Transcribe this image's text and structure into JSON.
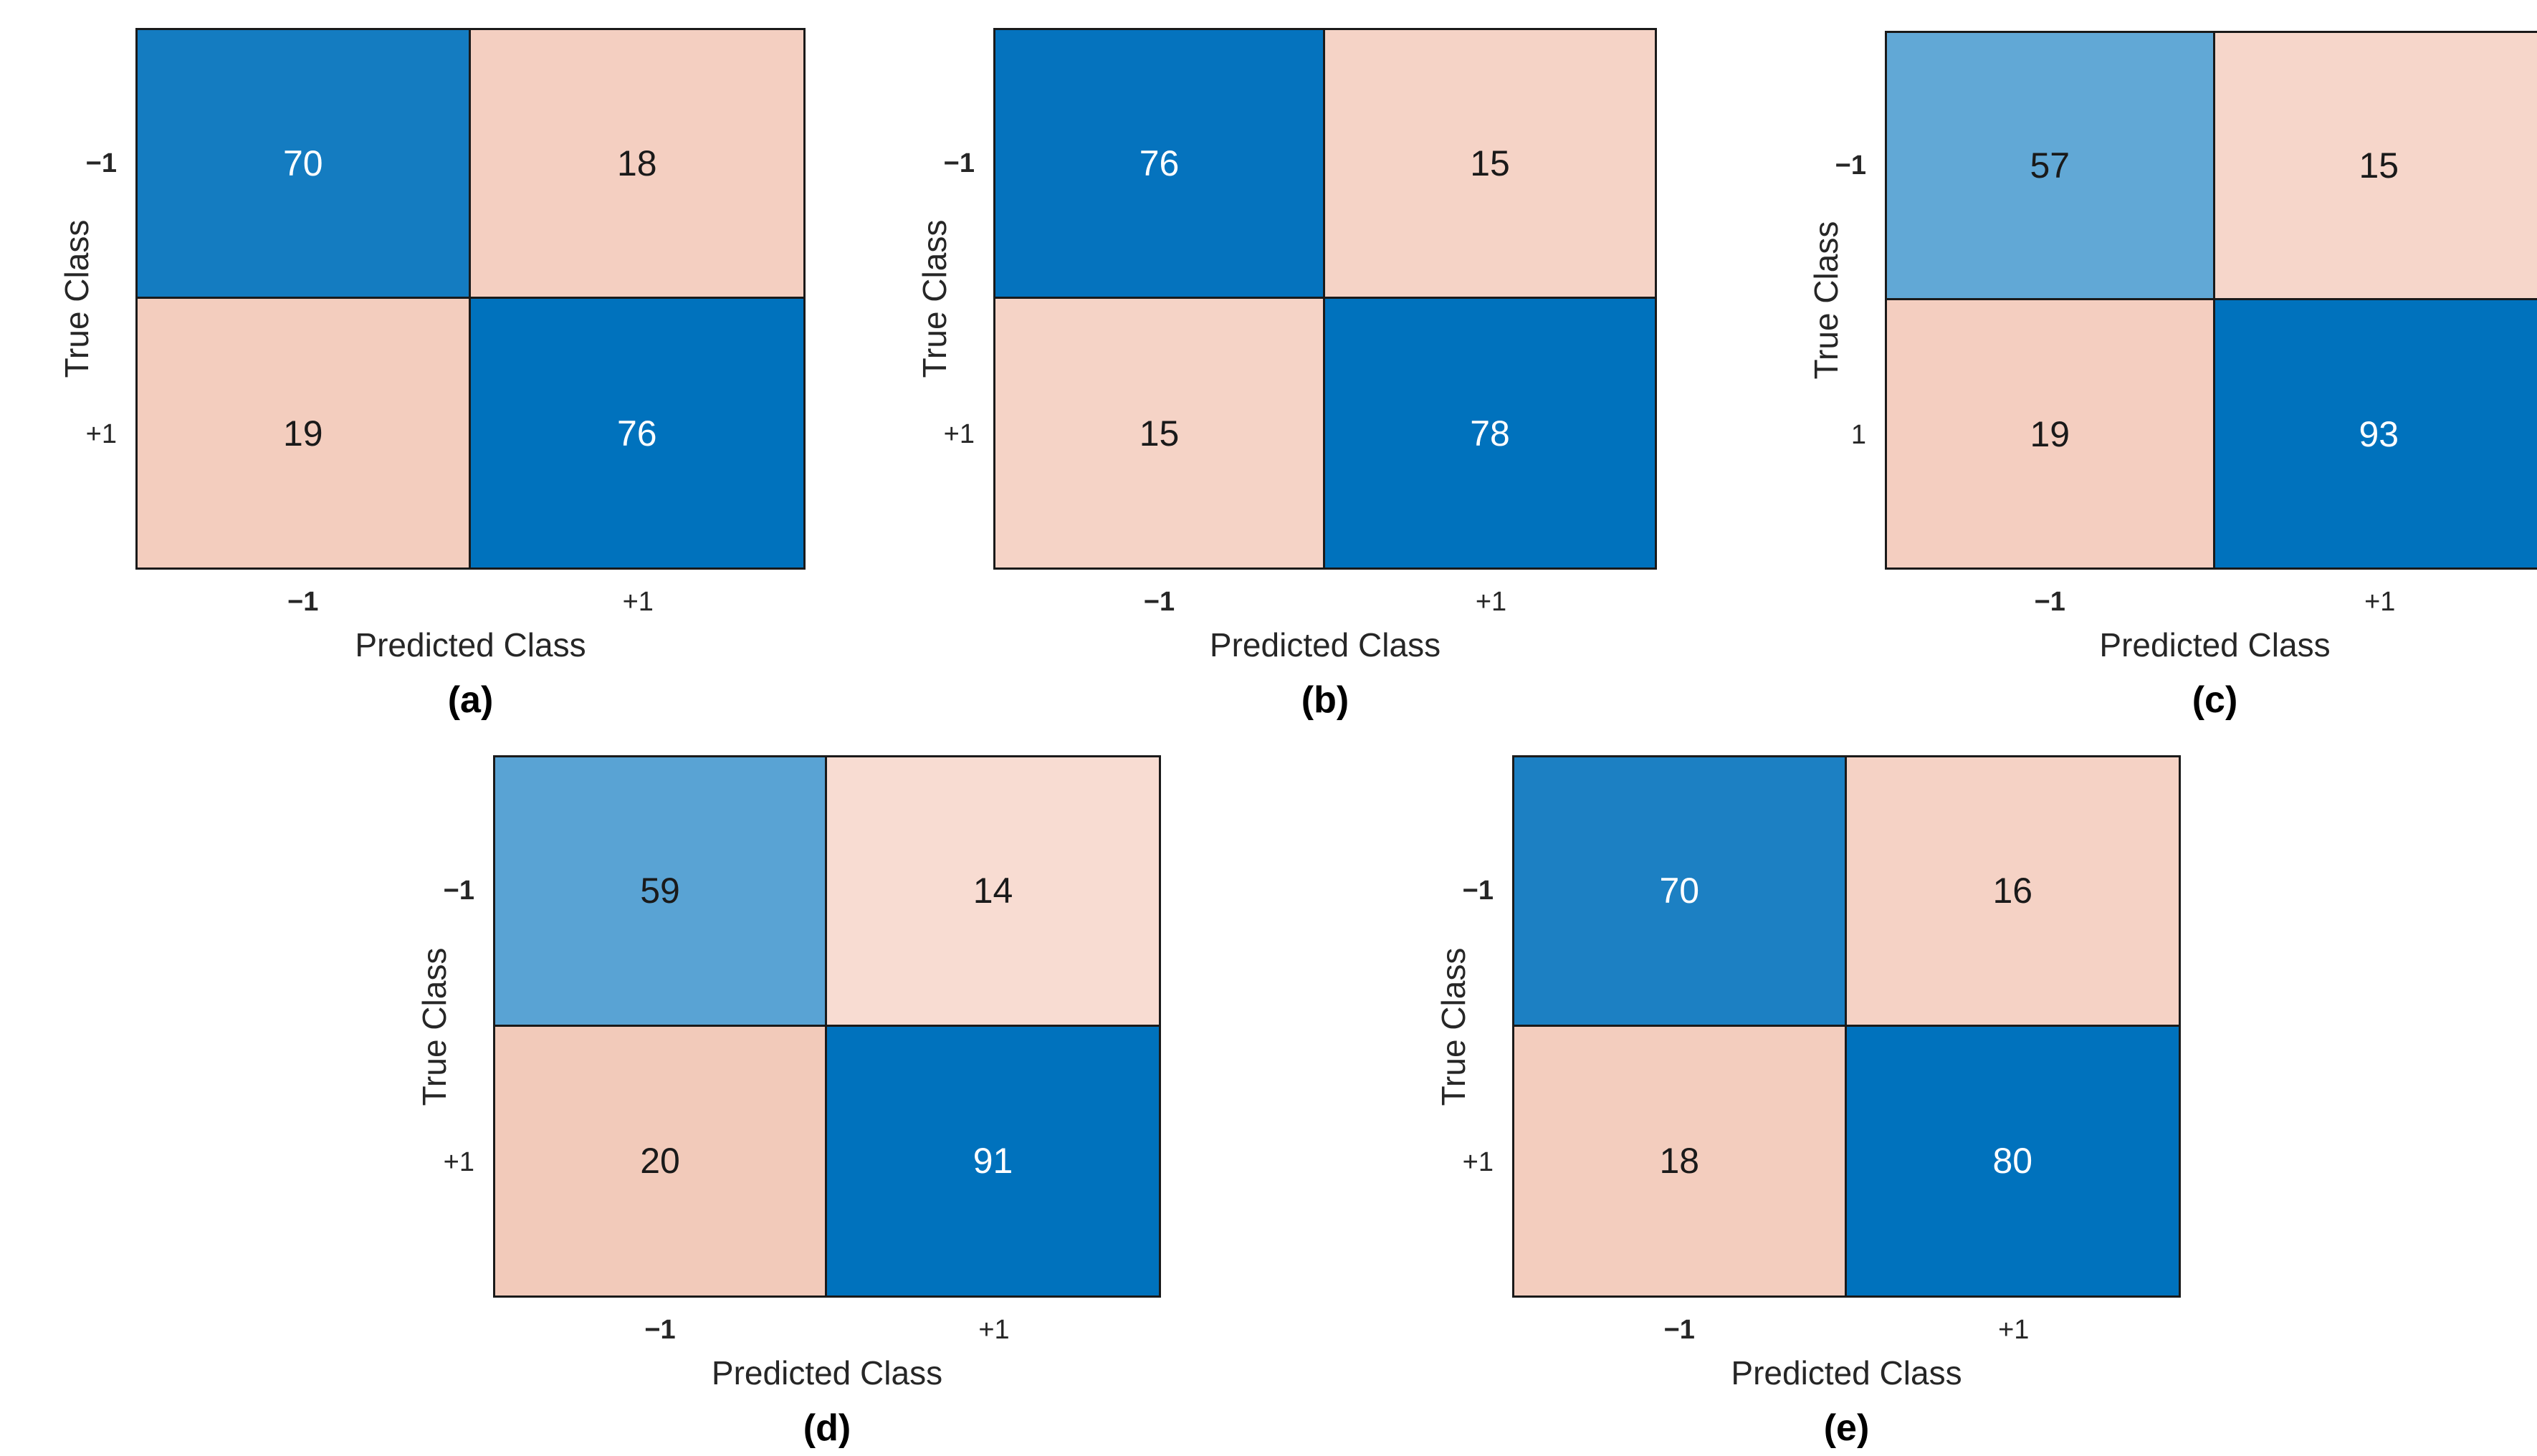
{
  "chart_data": [
    {
      "type": "heatmap",
      "panel_label": "(a)",
      "xlabel": "Predicted Class",
      "ylabel": "True Class",
      "x_categories": [
        "−1",
        "+1"
      ],
      "y_categories": [
        "−1",
        "+1"
      ],
      "matrix": [
        [
          70,
          18
        ],
        [
          19,
          76
        ]
      ],
      "cell_colors": [
        {
          "bg": "#147CC1",
          "fg": "#FFFFFF"
        },
        {
          "bg": "#F4CFC1",
          "fg": "#1A1A1A"
        },
        {
          "bg": "#F3CDBE",
          "fg": "#1A1A1A"
        },
        {
          "bg": "#0072BD",
          "fg": "#FFFFFF"
        }
      ],
      "legend": "off",
      "grid": "off"
    },
    {
      "type": "heatmap",
      "panel_label": "(b)",
      "xlabel": "Predicted Class",
      "ylabel": "True Class",
      "x_categories": [
        "−1",
        "+1"
      ],
      "y_categories": [
        "−1",
        "+1"
      ],
      "matrix": [
        [
          76,
          15
        ],
        [
          15,
          78
        ]
      ],
      "cell_colors": [
        {
          "bg": "#0573BE",
          "fg": "#FFFFFF"
        },
        {
          "bg": "#F5D3C6",
          "fg": "#1A1A1A"
        },
        {
          "bg": "#F5D3C6",
          "fg": "#1A1A1A"
        },
        {
          "bg": "#0072BD",
          "fg": "#FFFFFF"
        }
      ],
      "legend": "off",
      "grid": "off"
    },
    {
      "type": "heatmap",
      "panel_label": "(c)",
      "xlabel": "Predicted Class",
      "ylabel": "True Class",
      "x_categories": [
        "−1",
        "+1"
      ],
      "y_categories": [
        "−1",
        "1"
      ],
      "matrix": [
        [
          57,
          15
        ],
        [
          19,
          93
        ]
      ],
      "cell_colors": [
        {
          "bg": "#61A8D6",
          "fg": "#1A1A1A"
        },
        {
          "bg": "#F6D6CA",
          "fg": "#1A1A1A"
        },
        {
          "bg": "#F4CEC0",
          "fg": "#1A1A1A"
        },
        {
          "bg": "#0072BD",
          "fg": "#FFFFFF"
        }
      ],
      "legend": "off",
      "grid": "off"
    },
    {
      "type": "heatmap",
      "panel_label": "(d)",
      "xlabel": "Predicted Class",
      "ylabel": "True Class",
      "x_categories": [
        "−1",
        "+1"
      ],
      "y_categories": [
        "−1",
        "+1"
      ],
      "matrix": [
        [
          59,
          14
        ],
        [
          20,
          91
        ]
      ],
      "cell_colors": [
        {
          "bg": "#59A3D4",
          "fg": "#1A1A1A"
        },
        {
          "bg": "#F8DCD2",
          "fg": "#1A1A1A"
        },
        {
          "bg": "#F2CABA",
          "fg": "#1A1A1A"
        },
        {
          "bg": "#0072BD",
          "fg": "#FFFFFF"
        }
      ],
      "legend": "off",
      "grid": "off"
    },
    {
      "type": "heatmap",
      "panel_label": "(e)",
      "xlabel": "Predicted Class",
      "ylabel": "True Class",
      "x_categories": [
        "−1",
        "+1"
      ],
      "y_categories": [
        "−1",
        "+1"
      ],
      "matrix": [
        [
          70,
          16
        ],
        [
          18,
          80
        ]
      ],
      "cell_colors": [
        {
          "bg": "#1C80C3",
          "fg": "#FFFFFF"
        },
        {
          "bg": "#F5D2C5",
          "fg": "#1A1A1A"
        },
        {
          "bg": "#F3CDBE",
          "fg": "#1A1A1A"
        },
        {
          "bg": "#0072BD",
          "fg": "#FFFFFF"
        }
      ],
      "legend": "off",
      "grid": "off"
    }
  ],
  "colors": {
    "diagonal_full_blue": "#0072BD",
    "diagonal_light_blue": "#5BA4D5",
    "off_diagonal_pink": "#F4CFC1",
    "line_color": "#1A1A1A",
    "label_color": "#262626"
  }
}
